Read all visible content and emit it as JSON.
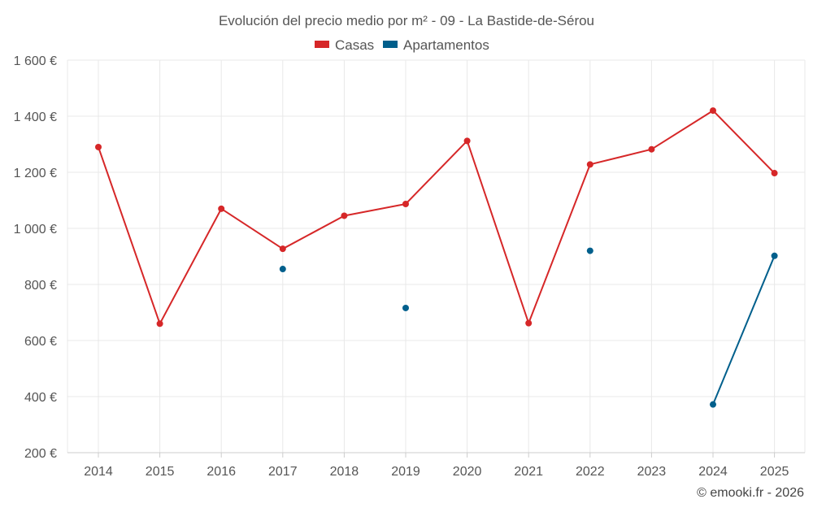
{
  "chart_data": {
    "type": "line",
    "title": "Evolución del precio medio por m² - 09 - La Bastide-de-Sérou",
    "categories": [
      "2014",
      "2015",
      "2016",
      "2017",
      "2018",
      "2019",
      "2020",
      "2021",
      "2022",
      "2023",
      "2024",
      "2025"
    ],
    "series": [
      {
        "name": "Casas",
        "color": "#d62728",
        "values": [
          1290,
          660,
          1070,
          927,
          1045,
          1087,
          1312,
          662,
          1228,
          1282,
          1420,
          1197
        ]
      },
      {
        "name": "Apartamentos",
        "color": "#005f8c",
        "values": [
          null,
          null,
          null,
          855,
          null,
          716,
          null,
          null,
          920,
          null,
          372,
          902
        ]
      }
    ],
    "y_ticks": [
      "200 €",
      "400 €",
      "600 €",
      "800 €",
      "1 000 €",
      "1 200 €",
      "1 400 €",
      "1 600 €"
    ],
    "ylim": [
      200,
      1600
    ],
    "xlabel": "",
    "ylabel": "",
    "grid": true,
    "legend_position": "top-center"
  },
  "credit": "© emooki.fr - 2026"
}
